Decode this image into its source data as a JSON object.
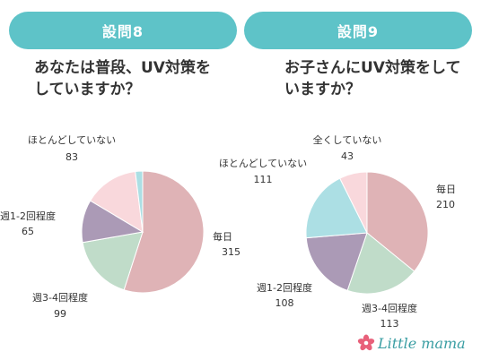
{
  "header": {
    "q8_title": "設問8",
    "q9_title": "設問9"
  },
  "questions": {
    "q8": "あなたは普段、UV対策を\nしていますか？",
    "q9": "お子さんにUV対策をして\nいますか？"
  },
  "brand": {
    "name": "Little mama",
    "accent": "#5ec3c8",
    "text_color": "#3a9ea3",
    "flower_color": "#e8607a"
  },
  "chart_data": [
    {
      "type": "pie",
      "title": "設問8",
      "categories": [
        "毎日",
        "週3-4回程度",
        "週1-2回程度",
        "ほとんどしていない"
      ],
      "values": [
        315,
        99,
        65,
        83
      ],
      "colors": [
        "#dfb3b6",
        "#c0dcc9",
        "#ab9ab6",
        "#f9d8dc"
      ],
      "extra_slice": {
        "color": "#acdfe4"
      }
    },
    {
      "type": "pie",
      "title": "設問9",
      "categories": [
        "毎日",
        "週3-4回程度",
        "週1-2回程度",
        "ほとんどしていない",
        "全くしていない"
      ],
      "values": [
        210,
        113,
        108,
        111,
        43
      ],
      "colors": [
        "#dfb3b6",
        "#c0dcc9",
        "#ab9ab6",
        "#acdfe4",
        "#f9d8dc"
      ]
    }
  ]
}
